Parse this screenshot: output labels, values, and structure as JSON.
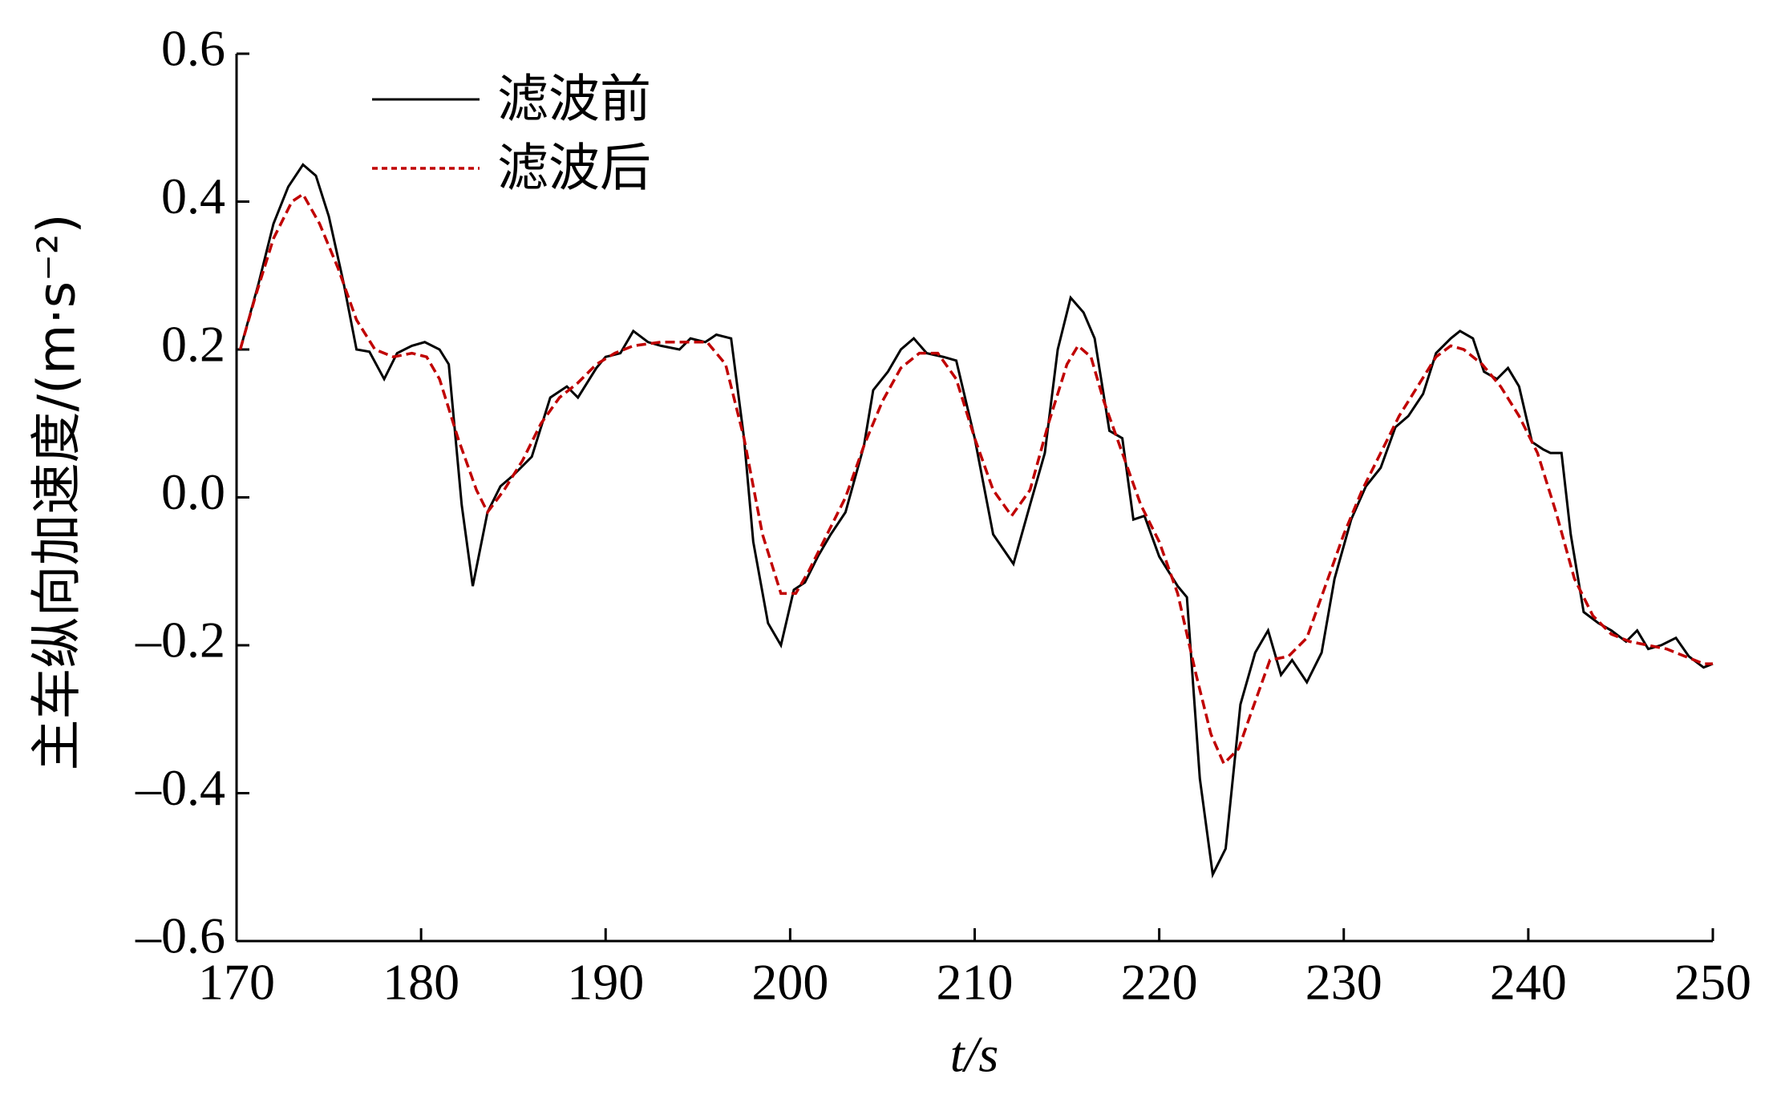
{
  "chart_data": {
    "type": "line",
    "xlabel": "t/s",
    "ylabel": "主车纵向加速度/(m·s⁻²)",
    "xlim": [
      170,
      250
    ],
    "xticks": [
      170,
      180,
      190,
      200,
      210,
      220,
      230,
      240,
      250
    ],
    "ylim": [
      -0.6,
      0.6
    ],
    "yticks": [
      {
        "value": -0.6,
        "label": "–0.6"
      },
      {
        "value": -0.4,
        "label": "–0.4"
      },
      {
        "value": -0.2,
        "label": "–0.2"
      },
      {
        "value": 0,
        "label": "0.0"
      },
      0.2,
      0.4,
      0.6
    ],
    "legend": "upper left",
    "series": [
      {
        "name": "滤波前",
        "color": "#000000",
        "dash": false,
        "x": [
          170.2,
          171.2,
          172,
          172.8,
          173.6,
          174.3,
          175,
          175.8,
          176.5,
          177.2,
          178,
          178.7,
          179.5,
          180.2,
          181,
          181.5,
          182.2,
          182.8,
          183.6,
          184.3,
          185,
          186,
          187,
          187.9,
          188.5,
          189.5,
          190,
          190.8,
          191.5,
          192.3,
          193,
          194,
          194.6,
          195.4,
          196,
          196.8,
          197.5,
          198,
          198.8,
          199.5,
          200.2,
          200.8,
          201.5,
          202.2,
          203,
          204,
          204.5,
          205.3,
          206,
          206.7,
          207.4,
          208.3,
          209,
          210,
          211,
          212.1,
          213,
          213.8,
          214.5,
          215.2,
          215.9,
          216.5,
          217.3,
          218,
          218.6,
          219.2,
          220,
          221,
          221.5,
          222.2,
          222.9,
          223.6,
          224.4,
          225.2,
          225.9,
          226.6,
          227.2,
          228,
          228.8,
          229.5,
          230.4,
          231.2,
          232,
          232.8,
          233.5,
          234.3,
          235,
          235.8,
          236.3,
          237,
          237.6,
          238.3,
          238.9,
          239.5,
          240.2,
          240.8,
          241.2,
          241.8,
          242.3,
          243,
          243.8,
          244.5,
          245.3,
          245.9,
          246.5,
          247.2,
          248,
          248.7,
          249.5,
          250
        ],
        "values": [
          0.2,
          0.29,
          0.37,
          0.42,
          0.45,
          0.435,
          0.38,
          0.29,
          0.2,
          0.197,
          0.16,
          0.195,
          0.205,
          0.21,
          0.2,
          0.18,
          -0.01,
          -0.12,
          -0.02,
          0.015,
          0.03,
          0.055,
          0.135,
          0.15,
          0.135,
          0.175,
          0.19,
          0.195,
          0.225,
          0.21,
          0.205,
          0.2,
          0.215,
          0.21,
          0.22,
          0.215,
          0.08,
          -0.06,
          -0.17,
          -0.2,
          -0.125,
          -0.115,
          -0.08,
          -0.05,
          -0.02,
          0.07,
          0.145,
          0.17,
          0.2,
          0.215,
          0.195,
          0.19,
          0.185,
          0.08,
          -0.05,
          -0.09,
          -0.01,
          0.06,
          0.2,
          0.27,
          0.25,
          0.215,
          0.09,
          0.08,
          -0.03,
          -0.025,
          -0.08,
          -0.12,
          -0.135,
          -0.38,
          -0.51,
          -0.475,
          -0.28,
          -0.21,
          -0.18,
          -0.24,
          -0.22,
          -0.25,
          -0.21,
          -0.11,
          -0.03,
          0.015,
          0.04,
          0.095,
          0.11,
          0.14,
          0.195,
          0.215,
          0.225,
          0.215,
          0.17,
          0.16,
          0.175,
          0.15,
          0.075,
          0.065,
          0.06,
          0.06,
          -0.05,
          -0.155,
          -0.17,
          -0.18,
          -0.195,
          -0.18,
          -0.205,
          -0.2,
          -0.19,
          -0.215,
          -0.23,
          -0.225
        ]
      },
      {
        "name": "滤波后",
        "color": "#c00000",
        "dash": true,
        "x": [
          170.2,
          171,
          172,
          173,
          173.6,
          174.5,
          175.5,
          176.5,
          177.5,
          178.5,
          179.5,
          180.3,
          181,
          182,
          183,
          183.6,
          184.5,
          185.5,
          186.5,
          187.5,
          188.5,
          189.5,
          190.5,
          191.5,
          193,
          194.5,
          195.5,
          196.5,
          197.5,
          198.5,
          199.5,
          200.3,
          201,
          202,
          203,
          204,
          205,
          206,
          207,
          208,
          209,
          210,
          211,
          212,
          213,
          214,
          215,
          215.6,
          216.3,
          217,
          218,
          219,
          220,
          221,
          222,
          222.8,
          223.5,
          224.3,
          225,
          226,
          227,
          228,
          229,
          230,
          231,
          232,
          233,
          234,
          235,
          235.8,
          236.5,
          237.5,
          238.5,
          239.5,
          240.5,
          241.5,
          242.5,
          243.5,
          244.5,
          245.5,
          246.5,
          247.5,
          248.5,
          249.5,
          250
        ],
        "values": [
          0.2,
          0.27,
          0.35,
          0.4,
          0.41,
          0.37,
          0.31,
          0.24,
          0.2,
          0.19,
          0.195,
          0.19,
          0.16,
          0.08,
          0.01,
          -0.02,
          0.01,
          0.05,
          0.1,
          0.135,
          0.155,
          0.18,
          0.195,
          0.205,
          0.21,
          0.21,
          0.21,
          0.18,
          0.08,
          -0.05,
          -0.13,
          -0.13,
          -0.1,
          -0.05,
          0,
          0.07,
          0.13,
          0.175,
          0.195,
          0.195,
          0.16,
          0.08,
          0.01,
          -0.025,
          0.01,
          0.1,
          0.18,
          0.205,
          0.19,
          0.13,
          0.06,
          -0.01,
          -0.06,
          -0.13,
          -0.24,
          -0.32,
          -0.36,
          -0.34,
          -0.29,
          -0.22,
          -0.215,
          -0.19,
          -0.12,
          -0.05,
          0.01,
          0.06,
          0.11,
          0.15,
          0.19,
          0.205,
          0.2,
          0.18,
          0.15,
          0.11,
          0.06,
          -0.02,
          -0.11,
          -0.16,
          -0.185,
          -0.195,
          -0.2,
          -0.205,
          -0.215,
          -0.225,
          -0.225
        ]
      }
    ]
  }
}
